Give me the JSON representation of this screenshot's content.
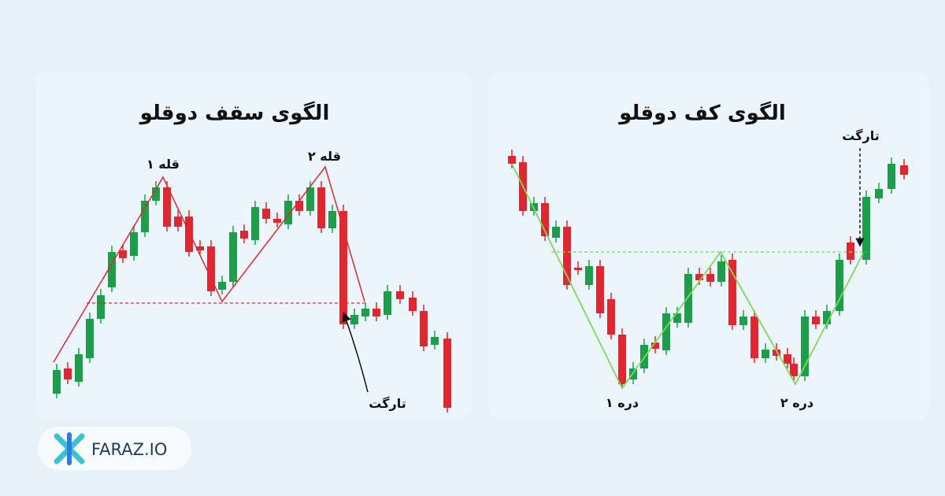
{
  "left_panel": {
    "title": "الگوی سقف دوقلو",
    "peak_1": "قله ۱",
    "peak_2": "قله ۲",
    "target": "تارگت"
  },
  "right_panel": {
    "title": "الگوی کف دوقلو",
    "target": "تارگت",
    "valley_1": "دره ۱",
    "valley_2": "دره ۲"
  },
  "logo": {
    "text": "FARAZ.IO"
  }
}
